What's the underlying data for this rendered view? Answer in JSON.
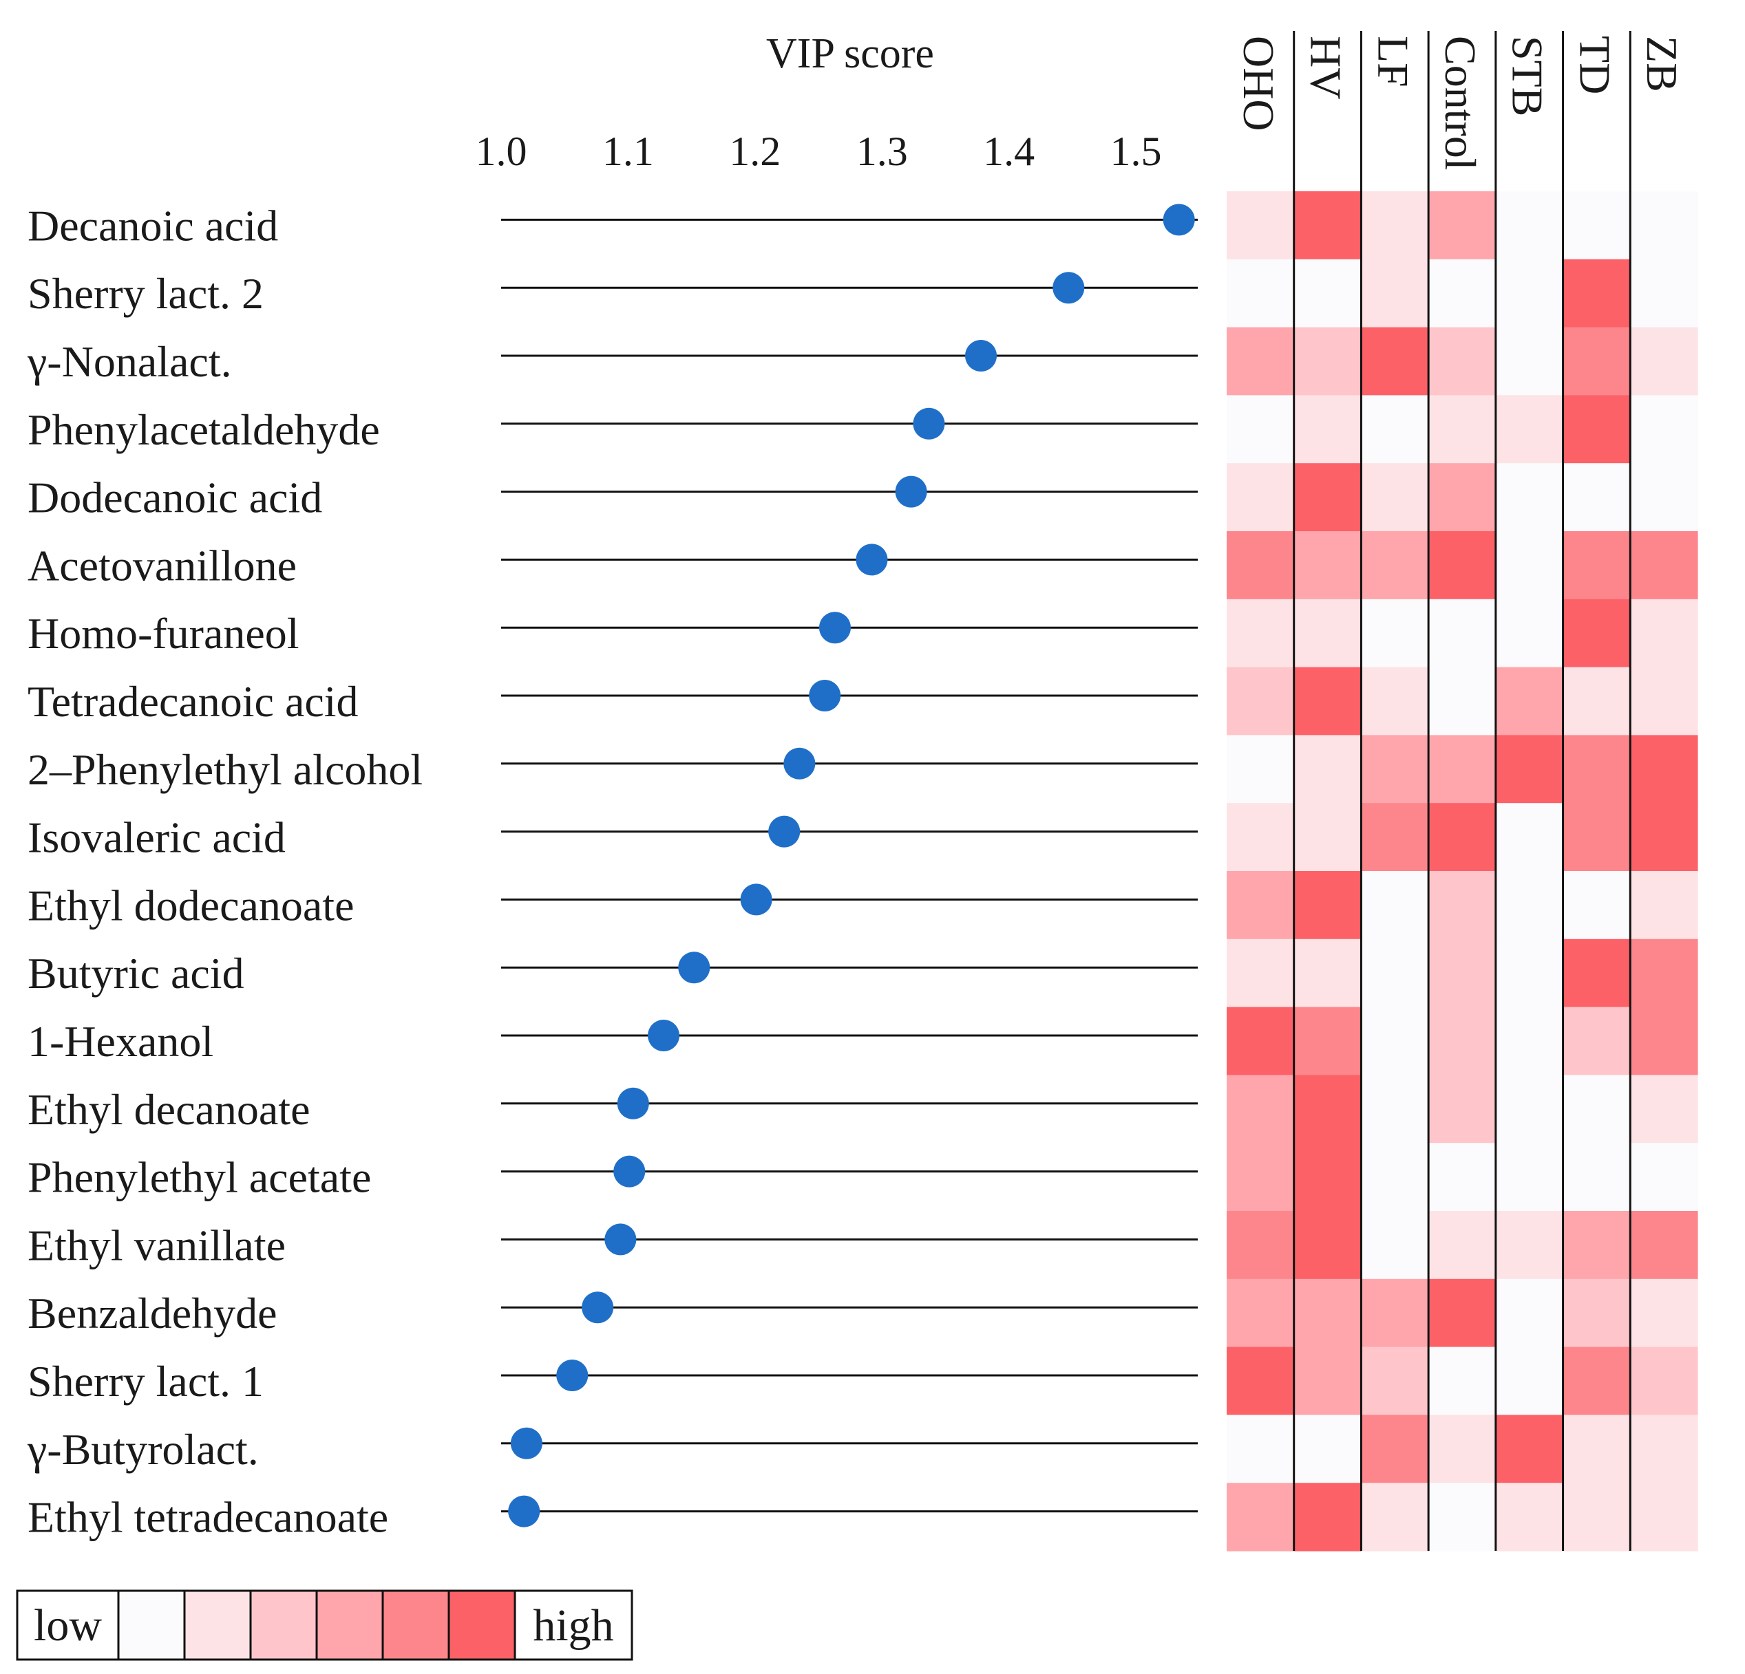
{
  "chart_data": [
    {
      "type": "lollipop",
      "title": "VIP score",
      "xlabel": "",
      "ylabel": "",
      "xlim": [
        1.0,
        1.55
      ],
      "xticks": [
        1.0,
        1.1,
        1.2,
        1.3,
        1.4,
        1.5
      ],
      "xtick_labels": [
        "1.0",
        "1.1",
        "1.2",
        "1.3",
        "1.4",
        "1.5"
      ],
      "point_color": "#1f6fc9",
      "categories": [
        "Decanoic acid",
        "Sherry lact. 2",
        "γ-Nonalact.",
        "Phenylacetaldehyde",
        "Dodecanoic acid",
        "Acetovanillone",
        "Homo-furaneol",
        "Tetradecanoic acid",
        "2–Phenylethyl alcohol",
        "Isovaleric acid",
        "Ethyl dodecanoate",
        "Butyric acid",
        "1-Hexanol",
        "Ethyl decanoate",
        "Phenylethyl acetate",
        "Ethyl vanillate",
        "Benzaldehyde",
        "Sherry lact. 1",
        "γ-Butyrolact.",
        "Ethyl tetradecanoate"
      ],
      "values": [
        1.534,
        1.447,
        1.378,
        1.337,
        1.323,
        1.292,
        1.263,
        1.255,
        1.235,
        1.223,
        1.201,
        1.152,
        1.128,
        1.104,
        1.101,
        1.094,
        1.076,
        1.056,
        1.02,
        1.018
      ]
    },
    {
      "type": "heatmap",
      "columns": [
        "OHO",
        "HV",
        "LF",
        "Control",
        "STB",
        "TD",
        "ZB"
      ],
      "rows": [
        "Decanoic acid",
        "Sherry lact. 2",
        "γ-Nonalact.",
        "Phenylacetaldehyde",
        "Dodecanoic acid",
        "Acetovanillone",
        "Homo-furaneol",
        "Tetradecanoic acid",
        "2–Phenylethyl alcohol",
        "Isovaleric acid",
        "Ethyl dodecanoate",
        "Butyric acid",
        "1-Hexanol",
        "Ethyl decanoate",
        "Phenylethyl acetate",
        "Ethyl vanillate",
        "Benzaldehyde",
        "Sherry lact. 1",
        "γ-Butyrolact.",
        "Ethyl tetradecanoate"
      ],
      "scale": "0 = low, 5 = high",
      "values": [
        [
          1,
          5,
          1,
          3,
          0,
          0,
          0
        ],
        [
          0,
          0,
          1,
          0,
          0,
          5,
          0
        ],
        [
          3,
          2,
          5,
          2,
          0,
          4,
          1
        ],
        [
          0,
          1,
          0,
          1,
          1,
          5,
          0
        ],
        [
          1,
          5,
          1,
          3,
          0,
          0,
          0
        ],
        [
          4,
          3,
          3,
          5,
          0,
          4,
          4
        ],
        [
          1,
          1,
          0,
          0,
          0,
          5,
          1
        ],
        [
          2,
          5,
          1,
          0,
          3,
          1,
          1
        ],
        [
          0,
          1,
          3,
          3,
          5,
          4,
          5
        ],
        [
          1,
          1,
          4,
          5,
          0,
          4,
          5
        ],
        [
          3,
          5,
          0,
          2,
          0,
          0,
          1
        ],
        [
          1,
          1,
          0,
          2,
          0,
          5,
          4
        ],
        [
          5,
          4,
          0,
          2,
          0,
          2,
          4
        ],
        [
          3,
          5,
          0,
          2,
          0,
          0,
          1
        ],
        [
          3,
          5,
          0,
          0,
          0,
          0,
          0
        ],
        [
          4,
          5,
          0,
          1,
          1,
          3,
          4
        ],
        [
          3,
          3,
          3,
          5,
          0,
          2,
          1
        ],
        [
          5,
          3,
          2,
          0,
          0,
          4,
          2
        ],
        [
          0,
          0,
          4,
          1,
          5,
          1,
          1
        ],
        [
          3,
          5,
          1,
          0,
          1,
          1,
          1
        ]
      ]
    }
  ],
  "legend": {
    "low_label": "low",
    "high_label": "high",
    "colors": [
      "#fbfbfd",
      "#fde3e5",
      "#fec6ca",
      "#fea6ab",
      "#fd868c",
      "#fd6168"
    ]
  }
}
